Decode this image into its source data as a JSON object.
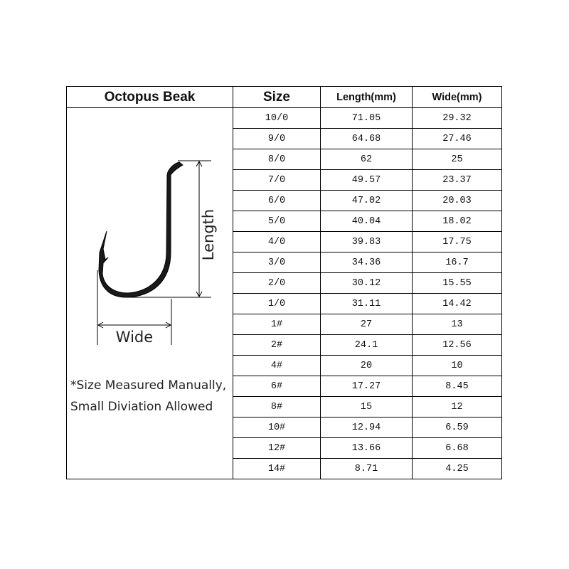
{
  "table": {
    "title": "Octopus Beak",
    "headers": [
      "Size",
      "Length(mm)",
      "Wide(mm)"
    ],
    "rows": [
      [
        "10/0",
        "71.05",
        "29.32"
      ],
      [
        "9/0",
        "64.68",
        "27.46"
      ],
      [
        "8/0",
        "62",
        "25"
      ],
      [
        "7/0",
        "49.57",
        "23.37"
      ],
      [
        "6/0",
        "47.02",
        "20.03"
      ],
      [
        "5/0",
        "40.04",
        "18.02"
      ],
      [
        "4/0",
        "39.83",
        "17.75"
      ],
      [
        "3/0",
        "34.36",
        "16.7"
      ],
      [
        "2/0",
        "30.12",
        "15.55"
      ],
      [
        "1/0",
        "31.11",
        "14.42"
      ],
      [
        "1#",
        "27",
        "13"
      ],
      [
        "2#",
        "24.1",
        "12.56"
      ],
      [
        "4#",
        "20",
        "10"
      ],
      [
        "6#",
        "17.27",
        "8.45"
      ],
      [
        "8#",
        "15",
        "12"
      ],
      [
        "10#",
        "12.94",
        "6.59"
      ],
      [
        "12#",
        "13.66",
        "6.68"
      ],
      [
        "14#",
        "8.71",
        "4.25"
      ]
    ]
  },
  "diagram": {
    "length_label": "Length",
    "wide_label": "Wide"
  },
  "note": [
    "*Size Measured Manually,",
    "Small Diviation Allowed"
  ]
}
